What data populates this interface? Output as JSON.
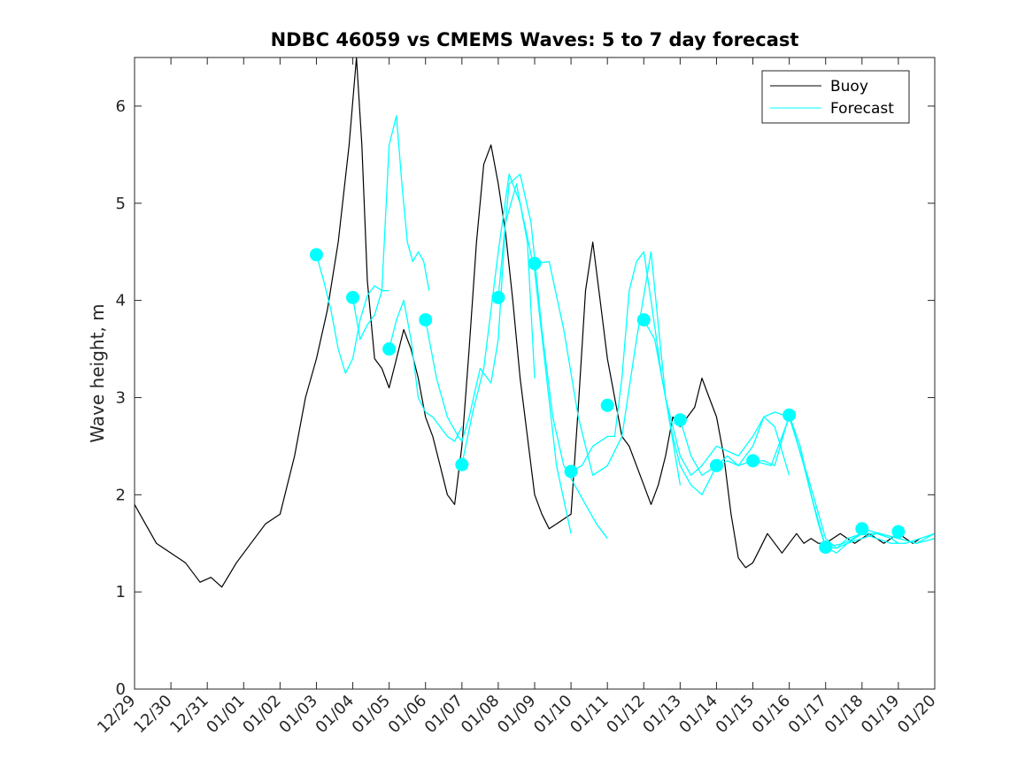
{
  "chart_data": {
    "type": "line",
    "title": "NDBC 46059 vs CMEMS Waves: 5 to 7 day forecast",
    "xlabel": "",
    "ylabel": "Wave height, m",
    "xlim": [
      0,
      22
    ],
    "ylim": [
      0,
      6.5
    ],
    "yticks": [
      0,
      1,
      2,
      3,
      4,
      5,
      6
    ],
    "xtick_labels": [
      "12/29",
      "12/30",
      "12/31",
      "01/01",
      "01/02",
      "01/03",
      "01/04",
      "01/05",
      "01/06",
      "01/07",
      "01/08",
      "01/09",
      "01/10",
      "01/11",
      "01/12",
      "01/13",
      "01/14",
      "01/15",
      "01/16",
      "01/17",
      "01/18",
      "01/19",
      "01/20"
    ],
    "legend": {
      "placement": "top-right",
      "entries": [
        "Buoy",
        "Forecast"
      ]
    },
    "colors": {
      "buoy": "#000000",
      "forecast": "#00FFFF"
    },
    "series": [
      {
        "name": "Buoy",
        "color": "#000000",
        "x": [
          0,
          0.3,
          0.6,
          1.0,
          1.4,
          1.8,
          2.1,
          2.4,
          2.8,
          3.2,
          3.6,
          4.0,
          4.4,
          4.7,
          5.0,
          5.3,
          5.6,
          5.9,
          6.1,
          6.25,
          6.4,
          6.6,
          6.8,
          7.0,
          7.2,
          7.4,
          7.6,
          7.8,
          8.0,
          8.2,
          8.4,
          8.6,
          8.8,
          9.0,
          9.2,
          9.4,
          9.6,
          9.8,
          10.0,
          10.2,
          10.4,
          10.6,
          10.8,
          11.0,
          11.2,
          11.4,
          11.6,
          11.8,
          12.0,
          12.2,
          12.4,
          12.6,
          12.8,
          13.0,
          13.2,
          13.4,
          13.6,
          13.8,
          14.0,
          14.2,
          14.4,
          14.6,
          14.8,
          15.0,
          15.2,
          15.4,
          15.6,
          15.8,
          16.0,
          16.2,
          16.4,
          16.6,
          16.8,
          17.0,
          17.2,
          17.4,
          17.6,
          17.8,
          18.0,
          18.2,
          18.4,
          18.6,
          18.8,
          19.0,
          19.2,
          19.4,
          19.6,
          19.8,
          20.0,
          20.2,
          20.4,
          20.6,
          20.8,
          21.0,
          21.2,
          21.4,
          21.6
        ],
        "y": [
          1.9,
          1.7,
          1.5,
          1.4,
          1.3,
          1.1,
          1.15,
          1.05,
          1.3,
          1.5,
          1.7,
          1.8,
          2.4,
          3.0,
          3.4,
          3.9,
          4.6,
          5.6,
          6.5,
          5.6,
          4.2,
          3.4,
          3.3,
          3.1,
          3.4,
          3.7,
          3.5,
          3.2,
          2.8,
          2.6,
          2.3,
          2.0,
          1.9,
          2.5,
          3.5,
          4.6,
          5.4,
          5.6,
          5.2,
          4.7,
          4.0,
          3.2,
          2.6,
          2.0,
          1.8,
          1.65,
          1.7,
          1.75,
          1.8,
          2.9,
          4.1,
          4.6,
          4.0,
          3.4,
          3.0,
          2.6,
          2.5,
          2.3,
          2.1,
          1.9,
          2.1,
          2.4,
          2.8,
          2.7,
          2.8,
          2.9,
          3.2,
          3.0,
          2.8,
          2.4,
          1.8,
          1.35,
          1.25,
          1.3,
          1.45,
          1.6,
          1.5,
          1.4,
          1.5,
          1.6,
          1.5,
          1.55,
          1.5,
          1.5,
          1.55,
          1.6,
          1.55,
          1.5,
          1.55,
          1.6,
          1.55,
          1.5,
          1.55,
          1.6,
          1.55,
          1.5,
          1.55
        ]
      },
      {
        "name": "Forecast",
        "color": "#00FFFF",
        "segments": [
          {
            "x": [
              5.0,
              5.2,
              5.4,
              5.6,
              5.8,
              6.0,
              6.2,
              6.4,
              6.6,
              6.8,
              7.0
            ],
            "y": [
              4.47,
              4.2,
              3.9,
              3.5,
              3.25,
              3.4,
              3.8,
              4.05,
              4.15,
              4.1,
              4.1
            ]
          },
          {
            "x": [
              6.0,
              6.2,
              6.4,
              6.6,
              6.8,
              7.0,
              7.2,
              7.35,
              7.5,
              7.65,
              7.8,
              7.95,
              8.1
            ],
            "y": [
              4.03,
              3.6,
              3.75,
              3.85,
              4.1,
              5.6,
              5.9,
              5.2,
              4.6,
              4.4,
              4.5,
              4.4,
              4.1
            ]
          },
          {
            "x": [
              7.0,
              7.2,
              7.4,
              7.6,
              7.8,
              8.0,
              8.2,
              8.4,
              8.6,
              8.8,
              9.0
            ],
            "y": [
              3.5,
              3.8,
              4.0,
              3.6,
              3.0,
              2.85,
              2.8,
              2.7,
              2.6,
              2.55,
              2.7
            ]
          },
          {
            "x": [
              8.0,
              8.3,
              8.6,
              8.9,
              9.0,
              9.2,
              9.5,
              9.8,
              10.0,
              10.2,
              10.5,
              10.8,
              11.0
            ],
            "y": [
              3.8,
              3.2,
              2.8,
              2.6,
              2.55,
              2.8,
              3.3,
              3.15,
              3.6,
              4.8,
              5.2,
              4.6,
              3.2
            ]
          },
          {
            "x": [
              9.0,
              9.3,
              9.6,
              10.0,
              10.3,
              10.6,
              11.0,
              11.3,
              11.6,
              12.0
            ],
            "y": [
              2.31,
              2.85,
              3.3,
              4.5,
              5.3,
              5.0,
              4.3,
              3.3,
              2.3,
              1.6
            ]
          },
          {
            "x": [
              10.0,
              10.3,
              10.6,
              10.9,
              11.2,
              11.5,
              11.8,
              12.1,
              12.4,
              12.7,
              13.0
            ],
            "y": [
              4.03,
              5.2,
              5.3,
              4.8,
              3.7,
              2.8,
              2.3,
              2.1,
              1.9,
              1.7,
              1.55
            ]
          },
          {
            "x": [
              11.0,
              11.4,
              11.8,
              12.2,
              12.6,
              13.0,
              13.4,
              13.8,
              14.2,
              14.6,
              15.0
            ],
            "y": [
              4.38,
              4.4,
              3.7,
              2.8,
              2.2,
              2.3,
              2.6,
              3.6,
              4.5,
              3.0,
              2.1
            ]
          },
          {
            "x": [
              12.0,
              12.3,
              12.6,
              12.8,
              13.0,
              13.2,
              13.4,
              13.6,
              13.8,
              14.0,
              14.2,
              14.5,
              14.8,
              15.0,
              15.3,
              15.6,
              16.0
            ],
            "y": [
              2.24,
              2.3,
              2.5,
              2.55,
              2.6,
              2.6,
              3.2,
              4.1,
              4.4,
              4.5,
              4.0,
              3.2,
              2.6,
              2.3,
              2.1,
              2.0,
              2.3
            ]
          },
          {
            "x": [
              14.0,
              14.3,
              14.6,
              15.0,
              15.3,
              15.6,
              16.0,
              16.3,
              16.6,
              17.0,
              17.3,
              17.6,
              18.0
            ],
            "y": [
              3.8,
              3.6,
              3.0,
              2.4,
              2.2,
              2.3,
              2.5,
              2.45,
              2.4,
              2.6,
              2.8,
              2.85,
              2.8
            ]
          },
          {
            "x": [
              15.0,
              15.3,
              15.6,
              16.0,
              16.3,
              16.6,
              17.0,
              17.3,
              17.6,
              18.0
            ],
            "y": [
              2.77,
              2.4,
              2.2,
              2.3,
              2.4,
              2.3,
              2.5,
              2.8,
              2.7,
              2.2
            ]
          },
          {
            "x": [
              16.0,
              16.3,
              16.6,
              17.0,
              17.3,
              17.6,
              18.0,
              18.3,
              18.6,
              19.0,
              19.3,
              19.6,
              20.0
            ],
            "y": [
              2.3,
              2.35,
              2.3,
              2.35,
              2.35,
              2.3,
              2.82,
              2.5,
              2.0,
              1.46,
              1.4,
              1.5,
              1.6
            ]
          },
          {
            "x": [
              17.0,
              17.5,
              18.0,
              18.5,
              19.0,
              19.3,
              19.6,
              20.0,
              20.4,
              20.8,
              21.0
            ],
            "y": [
              2.35,
              2.3,
              2.8,
              2.2,
              1.55,
              1.45,
              1.5,
              1.55,
              1.6,
              1.55,
              1.5
            ]
          },
          {
            "x": [
              18.0,
              18.4,
              18.8,
              19.0,
              19.3,
              19.6,
              20.0,
              20.4,
              20.8,
              21.2,
              21.6,
              22.0
            ],
            "y": [
              2.82,
              2.3,
              1.7,
              1.46,
              1.45,
              1.55,
              1.6,
              1.55,
              1.5,
              1.5,
              1.55,
              1.6
            ]
          },
          {
            "x": [
              19.0,
              19.5,
              20.0,
              20.5,
              21.0,
              21.5,
              22.0
            ],
            "y": [
              1.46,
              1.5,
              1.6,
              1.6,
              1.55,
              1.5,
              1.55
            ]
          },
          {
            "x": [
              20.0,
              20.5,
              21.0,
              21.5,
              22.0
            ],
            "y": [
              1.65,
              1.6,
              1.55,
              1.5,
              1.6
            ]
          }
        ],
        "markers": {
          "x": [
            5,
            6,
            7,
            8,
            9,
            10,
            11,
            12,
            13,
            14,
            15,
            16,
            17,
            18,
            19,
            20,
            21
          ],
          "y": [
            4.47,
            4.03,
            3.5,
            3.8,
            2.31,
            4.03,
            4.38,
            2.24,
            2.92,
            3.8,
            2.77,
            2.3,
            2.35,
            2.82,
            1.46,
            1.65,
            1.62
          ]
        }
      }
    ]
  }
}
